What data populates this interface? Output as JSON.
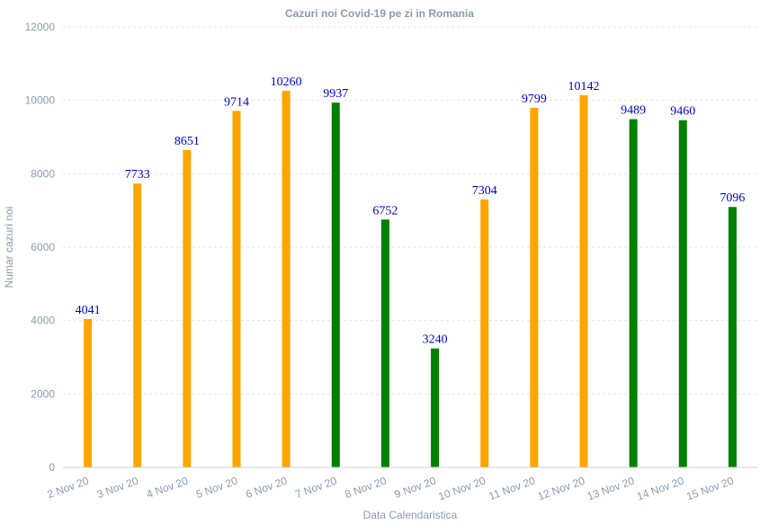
{
  "chart_data": {
    "type": "bar",
    "title": "Cazuri noi Covid-19 pe zi in Romania",
    "xlabel": "Data Calendaristica",
    "ylabel": "Numar cazuri noi",
    "categories": [
      "2 Nov 20",
      "3 Nov 20",
      "4 Nov 20",
      "5 Nov 20",
      "6 Nov 20",
      "7 Nov 20",
      "8 Nov 20",
      "9 Nov 20",
      "10 Nov 20",
      "11 Nov 20",
      "12 Nov 20",
      "13 Nov 20",
      "14 Nov 20",
      "15 Nov 20"
    ],
    "values": [
      4041,
      7733,
      8651,
      9714,
      10260,
      9937,
      6752,
      3240,
      7304,
      9799,
      10142,
      9489,
      9460,
      7096
    ],
    "bar_colors": [
      "#ffa500",
      "#ffa500",
      "#ffa500",
      "#ffa500",
      "#ffa500",
      "#008000",
      "#008000",
      "#008000",
      "#ffa500",
      "#ffa500",
      "#ffa500",
      "#008000",
      "#008000",
      "#008000"
    ],
    "data_labels": [
      "4041",
      "7733",
      "8651",
      "9714",
      "10260",
      "9937",
      "6752",
      "3240",
      "7304",
      "9799",
      "10142",
      "9489",
      "9460",
      "7096"
    ],
    "ylim": [
      0,
      12000
    ],
    "yticks": [
      "0",
      "2000",
      "4000",
      "6000",
      "8000",
      "10000",
      "12000"
    ],
    "grid": true,
    "legend": "none",
    "colors": {
      "weekday_bar": "#ffa500",
      "weekend_bar": "#008000",
      "data_label": "#0000cc",
      "axis_text": "#8a9bb0"
    }
  }
}
